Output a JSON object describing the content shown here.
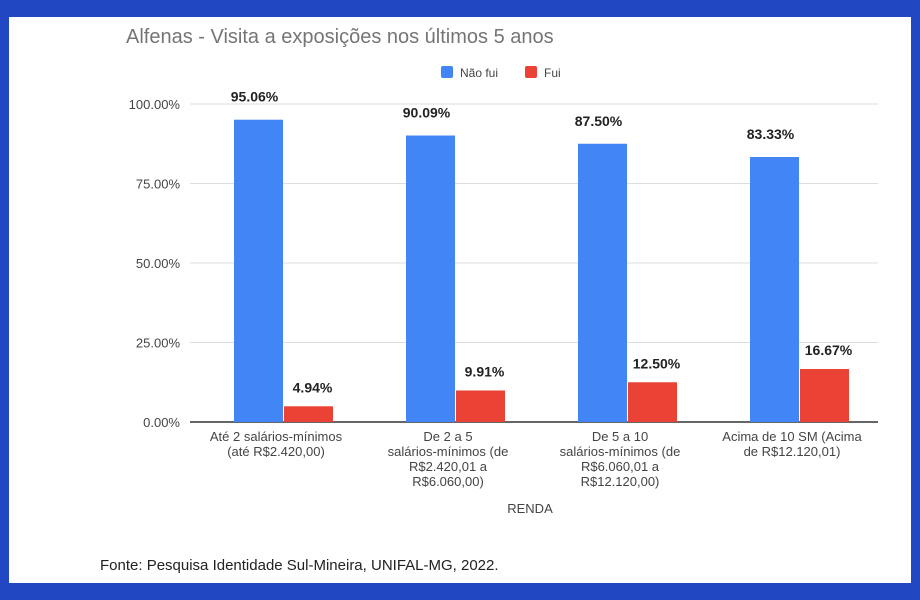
{
  "chart_data": {
    "type": "bar",
    "title": "Alfenas - Visita a exposições nos últimos 5 anos",
    "xlabel": "RENDA",
    "ylabel": "",
    "ylim": [
      0,
      100
    ],
    "yticks": [
      "0.00%",
      "25.00%",
      "50.00%",
      "75.00%",
      "100.00%"
    ],
    "ytick_values": [
      0,
      25,
      50,
      75,
      100
    ],
    "grid": true,
    "legend_position": "top-center",
    "categories": [
      [
        "Até 2 salários-mínimos",
        "(até R$2.420,00)"
      ],
      [
        "De 2 a 5",
        "salários-mínimos (de",
        "R$2.420,01 a",
        "R$6.060,00)"
      ],
      [
        "De 5 a 10",
        "salários-mínimos (de",
        "R$6.060,01 a",
        "R$12.120,00)"
      ],
      [
        "Acima de 10 SM (Acima",
        "de R$12.120,01)"
      ]
    ],
    "series": [
      {
        "name": "Não fui",
        "color": "#4285f4",
        "values": [
          95.06,
          90.09,
          87.5,
          83.33
        ],
        "labels": [
          "95.06%",
          "90.09%",
          "87.50%",
          "83.33%"
        ]
      },
      {
        "name": "Fui",
        "color": "#ea4335",
        "values": [
          4.94,
          9.91,
          12.5,
          16.67
        ],
        "labels": [
          "4.94%",
          "9.91%",
          "12.50%",
          "16.67%"
        ]
      }
    ]
  },
  "source": "Fonte: Pesquisa Identidade Sul-Mineira, UNIFAL-MG, 2022."
}
